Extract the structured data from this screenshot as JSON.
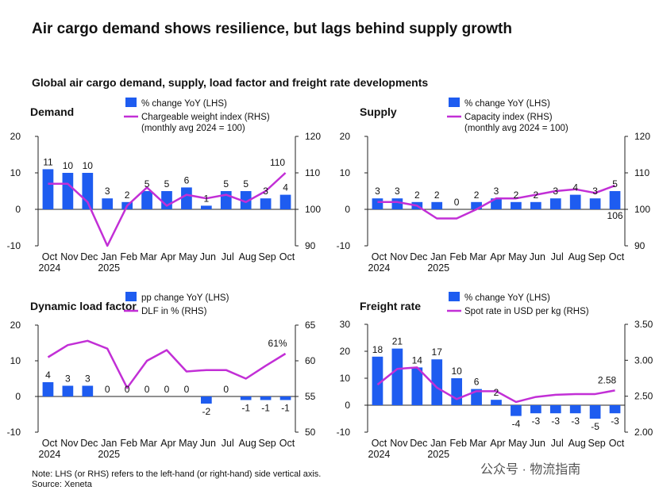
{
  "title": "Air cargo demand shows resilience, but lags behind supply growth",
  "subtitle": "Global air cargo demand, supply, load factor and freight rate developments",
  "note": "Note: LHS (or RHS) refers to the left-hand (or right-hand) side vertical axis.",
  "source": "Source: Xeneta",
  "watermark": "公众号 · 物流指南",
  "colors": {
    "bar": "#1e5cf0",
    "line": "#c22fd6",
    "text": "#111111"
  },
  "chart_data": [
    {
      "type": "bar+line",
      "title": "Demand",
      "categories": [
        "Oct",
        "Nov",
        "Dec",
        "Jan",
        "Feb",
        "Mar",
        "Apr",
        "May",
        "Jun",
        "Jul",
        "Aug",
        "Sep",
        "Oct"
      ],
      "year_labels": [
        "2024",
        "2025"
      ],
      "bar_series": {
        "name": "% change YoY (LHS)",
        "values": [
          11,
          10,
          10,
          3,
          2,
          5,
          5,
          6,
          1,
          5,
          5,
          3,
          4
        ],
        "labels": [
          "11",
          "10",
          "10",
          "3",
          "2",
          "5",
          "5",
          "6",
          "1",
          "5",
          "5",
          "3",
          "4"
        ]
      },
      "line_series": {
        "name": "Chargeable weight index (RHS)",
        "name_line2": "(monthly avg 2024 = 100)",
        "values": [
          107,
          107,
          102,
          90,
          101,
          106,
          101,
          104,
          103,
          104,
          102,
          105,
          110
        ],
        "end_label": "110"
      },
      "ylim_left": [
        -10,
        20
      ],
      "yticks_left": [
        "-10",
        "0",
        "10",
        "20"
      ],
      "ylim_right": [
        90,
        120
      ],
      "yticks_right": [
        "90",
        "100",
        "110",
        "120"
      ]
    },
    {
      "type": "bar+line",
      "title": "Supply",
      "categories": [
        "Oct",
        "Nov",
        "Dec",
        "Jan",
        "Feb",
        "Mar",
        "Apr",
        "May",
        "Jun",
        "Jul",
        "Aug",
        "Sep",
        "Oct"
      ],
      "year_labels": [
        "2024",
        "2025"
      ],
      "bar_series": {
        "name": "% change YoY (LHS)",
        "values": [
          3,
          3,
          2,
          2,
          0,
          2,
          3,
          2,
          2,
          3,
          4,
          3,
          5
        ],
        "labels": [
          "3",
          "3",
          "2",
          "2",
          "0",
          "2",
          "3",
          "2",
          "2",
          "3",
          "4",
          "3",
          "5"
        ]
      },
      "line_series": {
        "name": "Capacity index (RHS)",
        "name_line2": "(monthly avg 2024 = 100)",
        "values": [
          102,
          102,
          101,
          97.5,
          97.5,
          100,
          103,
          103,
          104,
          105,
          105.5,
          104.5,
          106.5
        ],
        "end_label": "106"
      },
      "ylim_left": [
        -10,
        20
      ],
      "yticks_left": [
        "-10",
        "0",
        "10",
        "20"
      ],
      "ylim_right": [
        90,
        120
      ],
      "yticks_right": [
        "90",
        "100",
        "110",
        "120"
      ]
    },
    {
      "type": "bar+line",
      "title": "Dynamic load factor",
      "categories": [
        "Oct",
        "Nov",
        "Dec",
        "Jan",
        "Feb",
        "Mar",
        "Apr",
        "May",
        "Jun",
        "Jul",
        "Aug",
        "Sep",
        "Oct"
      ],
      "year_labels": [
        "2024",
        "2025"
      ],
      "bar_series": {
        "name": "pp change YoY (LHS)",
        "values": [
          4,
          3,
          3,
          0,
          0,
          0,
          0,
          0,
          -2,
          0,
          -1,
          -1,
          -1
        ],
        "labels": [
          "4",
          "3",
          "3",
          "0",
          "0",
          "0",
          "0",
          "0",
          "-2",
          "0",
          "-1",
          "-1",
          "-1"
        ]
      },
      "line_series": {
        "name": "DLF in % (RHS)",
        "name_line2": "",
        "values": [
          60.5,
          62.2,
          62.8,
          61.7,
          56.2,
          60.0,
          61.5,
          58.5,
          58.7,
          58.7,
          57.5,
          59.3,
          61.0
        ],
        "end_label": "61%"
      },
      "ylim_left": [
        -10,
        20
      ],
      "yticks_left": [
        "-10",
        "0",
        "10",
        "20"
      ],
      "ylim_right": [
        50,
        65
      ],
      "yticks_right": [
        "50",
        "55",
        "60",
        "65"
      ]
    },
    {
      "type": "bar+line",
      "title": "Freight rate",
      "categories": [
        "Oct",
        "Nov",
        "Dec",
        "Jan",
        "Feb",
        "Mar",
        "Apr",
        "May",
        "Jun",
        "Jul",
        "Aug",
        "Sep",
        "Oct"
      ],
      "year_labels": [
        "2024",
        "2025"
      ],
      "bar_series": {
        "name": "% change YoY (LHS)",
        "values": [
          18,
          21,
          14,
          17,
          10,
          6,
          2,
          -4,
          -3,
          -3,
          -3,
          -5,
          -3
        ],
        "labels": [
          "18",
          "21",
          "14",
          "17",
          "10",
          "6",
          "2",
          "-4",
          "-3",
          "-3",
          "-3",
          "-5",
          "-3"
        ]
      },
      "line_series": {
        "name": "Spot rate in USD per kg (RHS)",
        "name_line2": "",
        "values": [
          2.66,
          2.88,
          2.9,
          2.62,
          2.46,
          2.57,
          2.57,
          2.42,
          2.49,
          2.52,
          2.53,
          2.53,
          2.58
        ],
        "end_label": "2.58"
      },
      "ylim_left": [
        -10,
        30
      ],
      "yticks_left": [
        "-10",
        "0",
        "10",
        "20",
        "30"
      ],
      "ylim_right": [
        2.0,
        3.5
      ],
      "yticks_right": [
        "2.00",
        "2.50",
        "3.00",
        "3.50"
      ]
    }
  ]
}
